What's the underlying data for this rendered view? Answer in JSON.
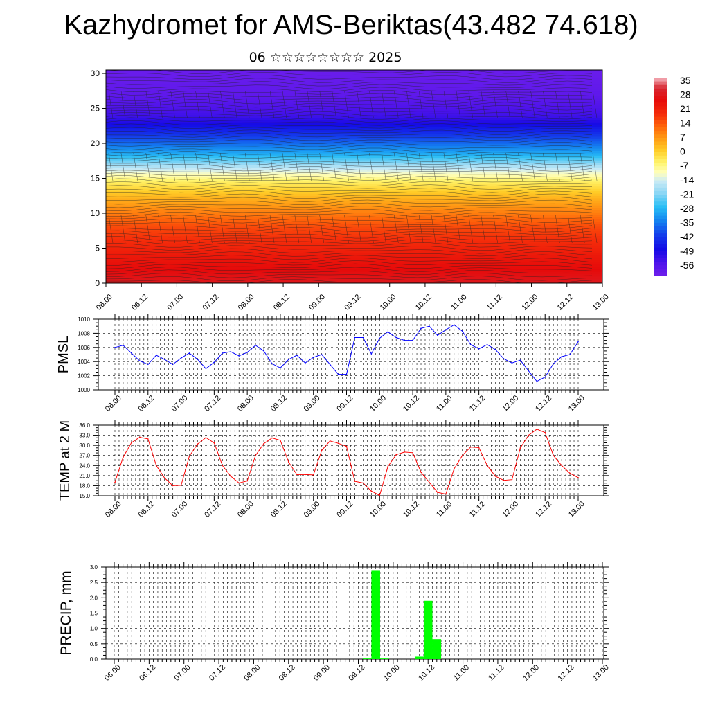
{
  "header": {
    "title": "Kazhydromet for AMS-Beriktas(43.482 74.618)",
    "subtitle": "06 ☆☆☆☆☆☆☆☆ 2025"
  },
  "time_labels": [
    "06.00",
    "06.12",
    "07.00",
    "07.12",
    "08.00",
    "08.12",
    "09.00",
    "09.12",
    "10.00",
    "10.12",
    "11.00",
    "11.12",
    "12.00",
    "12.12",
    "13.00"
  ],
  "chart_data": [
    {
      "type": "heatmap",
      "name": "cross-section",
      "x_ticks": [
        "06.00",
        "06.12",
        "07.00",
        "07.12",
        "08.00",
        "08.12",
        "09.00",
        "09.12",
        "10.00",
        "10.12",
        "11.00",
        "11.12",
        "12.00",
        "12.12",
        "13.00"
      ],
      "y_ticks": [
        0,
        5,
        10,
        15,
        20,
        25,
        30
      ],
      "ylim": [
        0,
        30.5
      ],
      "colorbar": {
        "labels": [
          35,
          28,
          21,
          14,
          7,
          0,
          -7,
          -14,
          -21,
          -28,
          -35,
          -42,
          -49,
          -56
        ],
        "range": [
          -60,
          38
        ]
      },
      "field_rows": [
        {
          "y": 0,
          "value": 30
        },
        {
          "y": 4,
          "value": 24
        },
        {
          "y": 8,
          "value": 17
        },
        {
          "y": 12,
          "value": 6
        },
        {
          "y": 14.5,
          "value": -3
        },
        {
          "y": 16.5,
          "value": -14
        },
        {
          "y": 18.5,
          "value": -28
        },
        {
          "y": 21,
          "value": -40
        },
        {
          "y": 24,
          "value": -52
        },
        {
          "y": 27,
          "value": -57
        },
        {
          "y": 30.5,
          "value": -59
        }
      ],
      "grid": false,
      "overlay": "wind barbs"
    },
    {
      "type": "line",
      "name": "pmsl",
      "ylabel": "PMSL",
      "ylim": [
        1000,
        1010
      ],
      "y_ticks": [
        1000,
        1002,
        1004,
        1006,
        1008,
        1010
      ],
      "x_ticks": [
        "06.00",
        "06.12",
        "07.00",
        "07.12",
        "08.00",
        "08.12",
        "09.00",
        "09.12",
        "10.00",
        "10.12",
        "11.00",
        "11.12",
        "12.00",
        "12.12",
        "13.00"
      ],
      "color": "#0000ff",
      "grid": true,
      "values": [
        1006.0,
        1006.3,
        1005.2,
        1004.1,
        1003.6,
        1004.9,
        1004.3,
        1003.6,
        1004.5,
        1005.2,
        1004.3,
        1003.0,
        1003.9,
        1005.2,
        1005.4,
        1004.8,
        1005.3,
        1006.3,
        1005.5,
        1003.7,
        1003.1,
        1004.3,
        1004.9,
        1003.8,
        1004.6,
        1005.0,
        1003.6,
        1002.2,
        1002.2,
        1007.4,
        1007.4,
        1005.1,
        1007.3,
        1008.2,
        1007.4,
        1007.0,
        1007.0,
        1008.7,
        1009.0,
        1007.7,
        1008.5,
        1009.2,
        1008.3,
        1006.4,
        1005.8,
        1006.4,
        1005.7,
        1004.4,
        1003.8,
        1004.2,
        1002.7,
        1001.2,
        1001.8,
        1003.7,
        1004.7,
        1005.0,
        1006.8
      ]
    },
    {
      "type": "line",
      "name": "temp-2m",
      "ylabel": "TEMP at 2 M",
      "ylim": [
        15,
        36
      ],
      "y_ticks": [
        "15.0",
        "18.0",
        "21.0",
        "24.0",
        "27.0",
        "30.0",
        "33.0",
        "36.0"
      ],
      "x_ticks": [
        "06.00",
        "06.12",
        "07.00",
        "07.12",
        "08.00",
        "08.12",
        "09.00",
        "09.12",
        "10.00",
        "10.12",
        "11.00",
        "11.12",
        "12.00",
        "12.12",
        "13.00"
      ],
      "color": "#ff0000",
      "grid": true,
      "values": [
        19.0,
        26.5,
        30.8,
        32.4,
        31.9,
        24.0,
        20.3,
        18.0,
        18.1,
        26.8,
        30.4,
        32.3,
        30.7,
        24.0,
        20.8,
        18.8,
        19.4,
        27.0,
        30.5,
        32.2,
        31.5,
        25.0,
        21.3,
        21.3,
        21.2,
        28.5,
        31.3,
        30.6,
        29.7,
        19.3,
        18.8,
        16.4,
        15.1,
        23.7,
        27.2,
        28.0,
        27.8,
        22.0,
        19.0,
        16.0,
        15.5,
        23.0,
        27.0,
        29.5,
        29.3,
        24.0,
        20.8,
        19.6,
        19.8,
        29.2,
        33.0,
        34.8,
        33.8,
        27.0,
        24.0,
        21.7,
        20.4
      ]
    },
    {
      "type": "bar",
      "name": "precip",
      "ylabel": "PRECIP, mm",
      "ylim": [
        0,
        3.0
      ],
      "y_ticks": [
        "0.0",
        "0.5",
        "1.0",
        "1.5",
        "2.0",
        "2.5",
        "3.0"
      ],
      "x_ticks": [
        "06.00",
        "06.12",
        "07.00",
        "07.12",
        "08.00",
        "08.12",
        "09.00",
        "09.12",
        "10.00",
        "10.12",
        "11.00",
        "11.12",
        "12.00",
        "12.12",
        "13.00"
      ],
      "color": "#00ff00",
      "grid": true,
      "bars": [
        {
          "step": 29,
          "value": 0.02
        },
        {
          "step": 30,
          "value": 2.9
        },
        {
          "step": 31,
          "value": 0.02
        },
        {
          "step": 35,
          "value": 0.08
        },
        {
          "step": 36,
          "value": 1.9
        },
        {
          "step": 37,
          "value": 0.65
        }
      ]
    }
  ]
}
